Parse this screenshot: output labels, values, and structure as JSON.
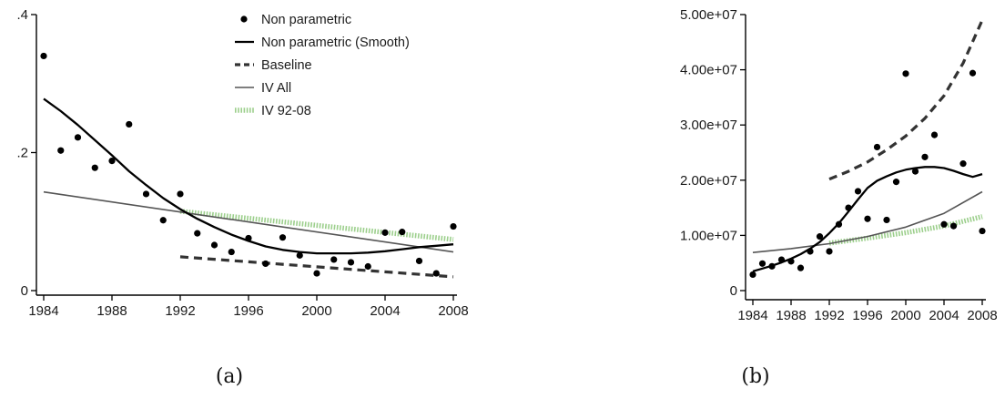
{
  "colors": {
    "points": "#000000",
    "smooth": "#000000",
    "baseline": "#333333",
    "iv_all": "#555555",
    "iv_92_08": "#9ccf8c",
    "axis": "#000000"
  },
  "chart_data": [
    {
      "type": "scatter",
      "caption": "(a)",
      "xlim": [
        1984,
        2008
      ],
      "ylim": [
        0,
        0.4
      ],
      "x_ticks": [
        1984,
        1988,
        1992,
        1996,
        2000,
        2004,
        2008
      ],
      "x_tick_labels": [
        "1984",
        "1988",
        "1992",
        "1996",
        "2000",
        "2004",
        "2008"
      ],
      "y_ticks": [
        0,
        0.2,
        0.4
      ],
      "y_tick_labels": [
        "0",
        ".2",
        ".4"
      ],
      "grid": false,
      "legend_position": "top-right",
      "legend": [
        {
          "key": "points",
          "label": "Non parametric",
          "style": "dot"
        },
        {
          "key": "smooth",
          "label": "Non parametric (Smooth)",
          "style": "solid-thick"
        },
        {
          "key": "baseline",
          "label": "Baseline",
          "style": "dashed"
        },
        {
          "key": "iv_all",
          "label": "IV All",
          "style": "solid-thin"
        },
        {
          "key": "iv_92_08",
          "label": "IV 92-08",
          "style": "dotted-green"
        }
      ],
      "series": [
        {
          "key": "points",
          "label": "Non parametric",
          "style": "dot",
          "x": [
            1984,
            1985,
            1986,
            1987,
            1988,
            1989,
            1990,
            1991,
            1992,
            1993,
            1994,
            1995,
            1996,
            1997,
            1998,
            1999,
            2000,
            2001,
            2002,
            2003,
            2004,
            2005,
            2006,
            2007,
            2008
          ],
          "y": [
            0.34,
            0.203,
            0.222,
            0.178,
            0.188,
            0.241,
            0.14,
            0.102,
            0.14,
            0.083,
            0.066,
            0.056,
            0.076,
            0.039,
            0.077,
            0.051,
            0.025,
            0.045,
            0.041,
            0.035,
            0.084,
            0.085,
            0.043,
            0.025,
            0.093
          ]
        },
        {
          "key": "smooth",
          "label": "Non parametric (Smooth)",
          "style": "solid-thick",
          "x": [
            1984,
            1985,
            1986,
            1987,
            1988,
            1989,
            1990,
            1991,
            1992,
            1993,
            1994,
            1995,
            1996,
            1997,
            1998,
            1999,
            2000,
            2001,
            2002,
            2003,
            2004,
            2005,
            2006,
            2007,
            2008
          ],
          "y": [
            0.278,
            0.26,
            0.24,
            0.218,
            0.196,
            0.173,
            0.153,
            0.134,
            0.118,
            0.104,
            0.092,
            0.081,
            0.072,
            0.064,
            0.059,
            0.056,
            0.054,
            0.054,
            0.054,
            0.055,
            0.057,
            0.06,
            0.063,
            0.065,
            0.067
          ]
        },
        {
          "key": "baseline",
          "label": "Baseline",
          "style": "dashed",
          "x": [
            1992,
            2008
          ],
          "y": [
            0.049,
            0.02
          ]
        },
        {
          "key": "iv_all",
          "label": "IV All",
          "style": "solid-thin",
          "x": [
            1984,
            2008
          ],
          "y": [
            0.143,
            0.056
          ]
        },
        {
          "key": "iv_92_08",
          "label": "IV 92-08",
          "style": "dotted-green",
          "x": [
            1992,
            2008
          ],
          "y": [
            0.115,
            0.074
          ]
        }
      ]
    },
    {
      "type": "scatter",
      "caption": "(b)",
      "xlim": [
        1984,
        2008
      ],
      "ylim": [
        0,
        50000000
      ],
      "x_ticks": [
        1984,
        1988,
        1992,
        1996,
        2000,
        2004,
        2008
      ],
      "x_tick_labels": [
        "1984",
        "1988",
        "1992",
        "1996",
        "2000",
        "2004",
        "2008"
      ],
      "y_ticks": [
        0,
        10000000,
        20000000,
        30000000,
        40000000,
        50000000
      ],
      "y_tick_labels": [
        "0",
        "1.00e+07",
        "2.00e+07",
        "3.00e+07",
        "4.00e+07",
        "5.00e+07"
      ],
      "grid": false,
      "series": [
        {
          "key": "points",
          "label": "Non parametric",
          "style": "dot",
          "x": [
            1984,
            1985,
            1986,
            1987,
            1988,
            1989,
            1990,
            1991,
            1992,
            1993,
            1994,
            1995,
            1996,
            1997,
            1998,
            1999,
            2000,
            2001,
            2002,
            2003,
            2004,
            2005,
            2006,
            2007,
            2008
          ],
          "y": [
            2900000,
            4900000,
            4400000,
            5600000,
            5300000,
            4100000,
            7100000,
            9800000,
            7100000,
            12000000,
            15000000,
            18000000,
            13000000,
            26000000,
            12800000,
            19700000,
            39300000,
            21600000,
            24200000,
            28200000,
            12000000,
            11700000,
            23000000,
            39400000,
            10800000
          ]
        },
        {
          "key": "smooth",
          "label": "Non parametric (Smooth)",
          "style": "solid-thick",
          "x": [
            1984,
            1985,
            1986,
            1987,
            1988,
            1989,
            1990,
            1991,
            1992,
            1993,
            1994,
            1995,
            1996,
            1997,
            1998,
            1999,
            2000,
            2001,
            2002,
            2003,
            2004,
            2005,
            2006,
            2007,
            2008
          ],
          "y": [
            3500000,
            4000000,
            4500000,
            5100000,
            5800000,
            6600000,
            7600000,
            8800000,
            10400000,
            12200000,
            14300000,
            16500000,
            18600000,
            19900000,
            20700000,
            21400000,
            21900000,
            22200000,
            22400000,
            22400000,
            22200000,
            21700000,
            21100000,
            20600000,
            21100000
          ]
        },
        {
          "key": "baseline",
          "label": "Baseline",
          "style": "dashed",
          "x": [
            1992,
            1994,
            1996,
            1998,
            2000,
            2002,
            2004,
            2006,
            2008
          ],
          "y": [
            20200000,
            21600000,
            23300000,
            25500000,
            28000000,
            31200000,
            35300000,
            41200000,
            49000000
          ]
        },
        {
          "key": "iv_all",
          "label": "IV All",
          "style": "solid-thin",
          "x": [
            1984,
            1988,
            1992,
            1996,
            2000,
            2004,
            2008
          ],
          "y": [
            6900000,
            7600000,
            8500000,
            9800000,
            11500000,
            14000000,
            17900000
          ]
        },
        {
          "key": "iv_92_08",
          "label": "IV 92-08",
          "style": "dotted-green",
          "x": [
            1992,
            1996,
            2000,
            2004,
            2008
          ],
          "y": [
            8600000,
            9500000,
            10500000,
            11700000,
            13400000
          ]
        }
      ]
    }
  ]
}
